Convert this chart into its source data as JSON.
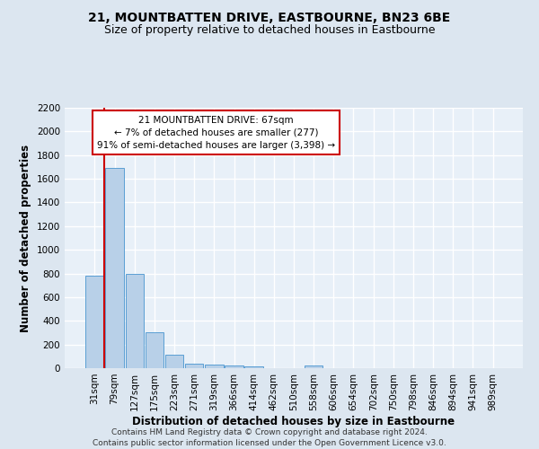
{
  "title": "21, MOUNTBATTEN DRIVE, EASTBOURNE, BN23 6BE",
  "subtitle": "Size of property relative to detached houses in Eastbourne",
  "xlabel": "Distribution of detached houses by size in Eastbourne",
  "ylabel": "Number of detached properties",
  "bar_labels": [
    "31sqm",
    "79sqm",
    "127sqm",
    "175sqm",
    "223sqm",
    "271sqm",
    "319sqm",
    "366sqm",
    "414sqm",
    "462sqm",
    "510sqm",
    "558sqm",
    "606sqm",
    "654sqm",
    "702sqm",
    "750sqm",
    "798sqm",
    "846sqm",
    "894sqm",
    "941sqm",
    "989sqm"
  ],
  "bar_values": [
    780,
    1690,
    800,
    300,
    115,
    35,
    28,
    20,
    15,
    0,
    0,
    20,
    0,
    0,
    0,
    0,
    0,
    0,
    0,
    0,
    0
  ],
  "bar_color": "#b8d0e8",
  "bar_edge_color": "#5a9fd4",
  "ylim": [
    0,
    2200
  ],
  "yticks": [
    0,
    200,
    400,
    600,
    800,
    1000,
    1200,
    1400,
    1600,
    1800,
    2000,
    2200
  ],
  "property_line_color": "#cc0000",
  "annotation_title": "21 MOUNTBATTEN DRIVE: 67sqm",
  "annotation_line1": "← 7% of detached houses are smaller (277)",
  "annotation_line2": "91% of semi-detached houses are larger (3,398) →",
  "annotation_box_color": "#ffffff",
  "annotation_box_edge": "#cc0000",
  "footer1": "Contains HM Land Registry data © Crown copyright and database right 2024.",
  "footer2": "Contains public sector information licensed under the Open Government Licence v3.0.",
  "bg_color": "#dce6f0",
  "plot_bg_color": "#e8f0f8",
  "grid_color": "#ffffff",
  "title_fontsize": 10,
  "subtitle_fontsize": 9,
  "axis_label_fontsize": 8.5,
  "tick_fontsize": 7.5,
  "footer_fontsize": 6.5
}
